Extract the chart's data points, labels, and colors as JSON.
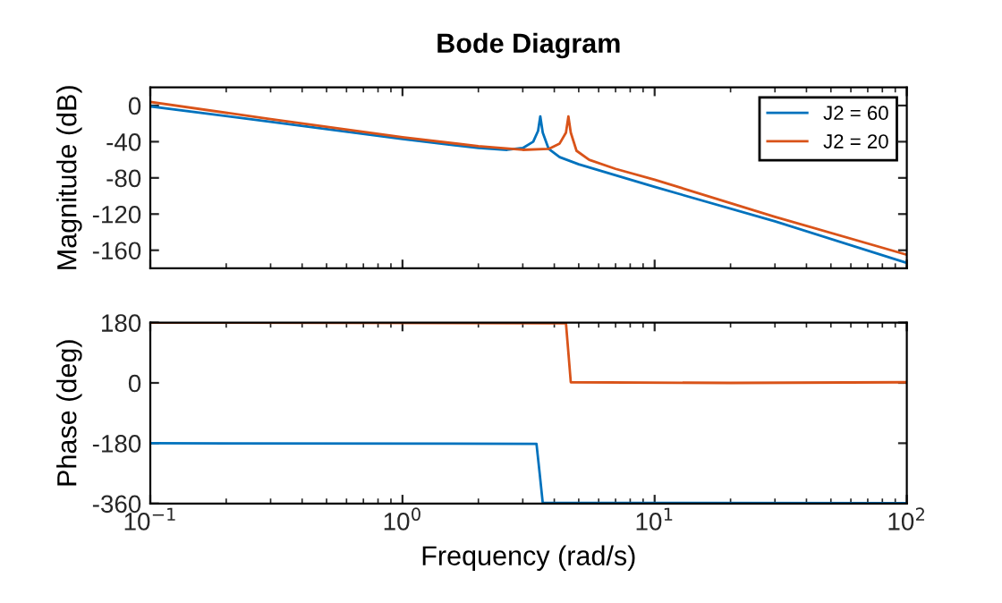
{
  "chart_data": [
    {
      "type": "line",
      "title": "Bode Diagram",
      "ylabel": "Magnitude (dB)",
      "log": "x",
      "xlim": [
        0.1,
        100
      ],
      "xticks": [
        {
          "value": 0.1,
          "label": null
        },
        {
          "value": 1,
          "label": null
        },
        {
          "value": 10,
          "label": null
        },
        {
          "value": 100,
          "label": null
        }
      ],
      "ylim": [
        -180,
        20
      ],
      "yticks": [
        -160,
        -120,
        -80,
        -40,
        0
      ],
      "tick_labels": "y",
      "legend": "top right",
      "grid": false,
      "series": [
        {
          "name": "J2 = 60",
          "color": "#0072bd",
          "x": [
            0.1,
            0.3,
            1,
            2,
            2.6,
            3.0,
            3.3,
            3.45,
            3.52,
            3.6,
            3.8,
            4.2,
            5,
            10,
            30,
            100
          ],
          "values": [
            -1,
            -18,
            -37,
            -47,
            -49,
            -47,
            -40,
            -28,
            -12,
            -30,
            -48,
            -57,
            -65,
            -90,
            -128,
            -174
          ]
        },
        {
          "name": "J2 = 20",
          "color": "#d95319",
          "x": [
            0.1,
            0.3,
            1,
            2,
            3,
            3.8,
            4.2,
            4.45,
            4.55,
            4.65,
            4.9,
            5.5,
            7,
            10,
            30,
            100
          ],
          "values": [
            4,
            -15,
            -35,
            -45,
            -49,
            -48,
            -42,
            -30,
            -12,
            -30,
            -50,
            -60,
            -70,
            -82,
            -123,
            -165
          ]
        }
      ]
    },
    {
      "type": "line",
      "xlabel": "Frequency (rad/s)",
      "ylabel": "Phase (deg)",
      "log": "x",
      "xlim": [
        0.1,
        100
      ],
      "xticks": [
        {
          "value": 0.1,
          "label": "10$^{−1}$"
        },
        {
          "value": 1,
          "label": "10$^{0}$"
        },
        {
          "value": 10,
          "label": "10$^{1}$"
        },
        {
          "value": 100,
          "label": "10$^{2}$"
        }
      ],
      "ylim": [
        -360,
        180
      ],
      "yticks": [
        -360,
        -180,
        0,
        180
      ],
      "grid": false,
      "series": [
        {
          "color": "#0072bd",
          "x": [
            0.1,
            3.4,
            3.5,
            3.6,
            100
          ],
          "values": [
            -180,
            -182,
            -270,
            -358,
            -359
          ]
        },
        {
          "color": "#d95319",
          "x": [
            0.1,
            4.45,
            4.55,
            4.65,
            20,
            100
          ],
          "values": [
            180,
            178,
            90,
            2,
            0,
            2
          ]
        }
      ]
    }
  ]
}
